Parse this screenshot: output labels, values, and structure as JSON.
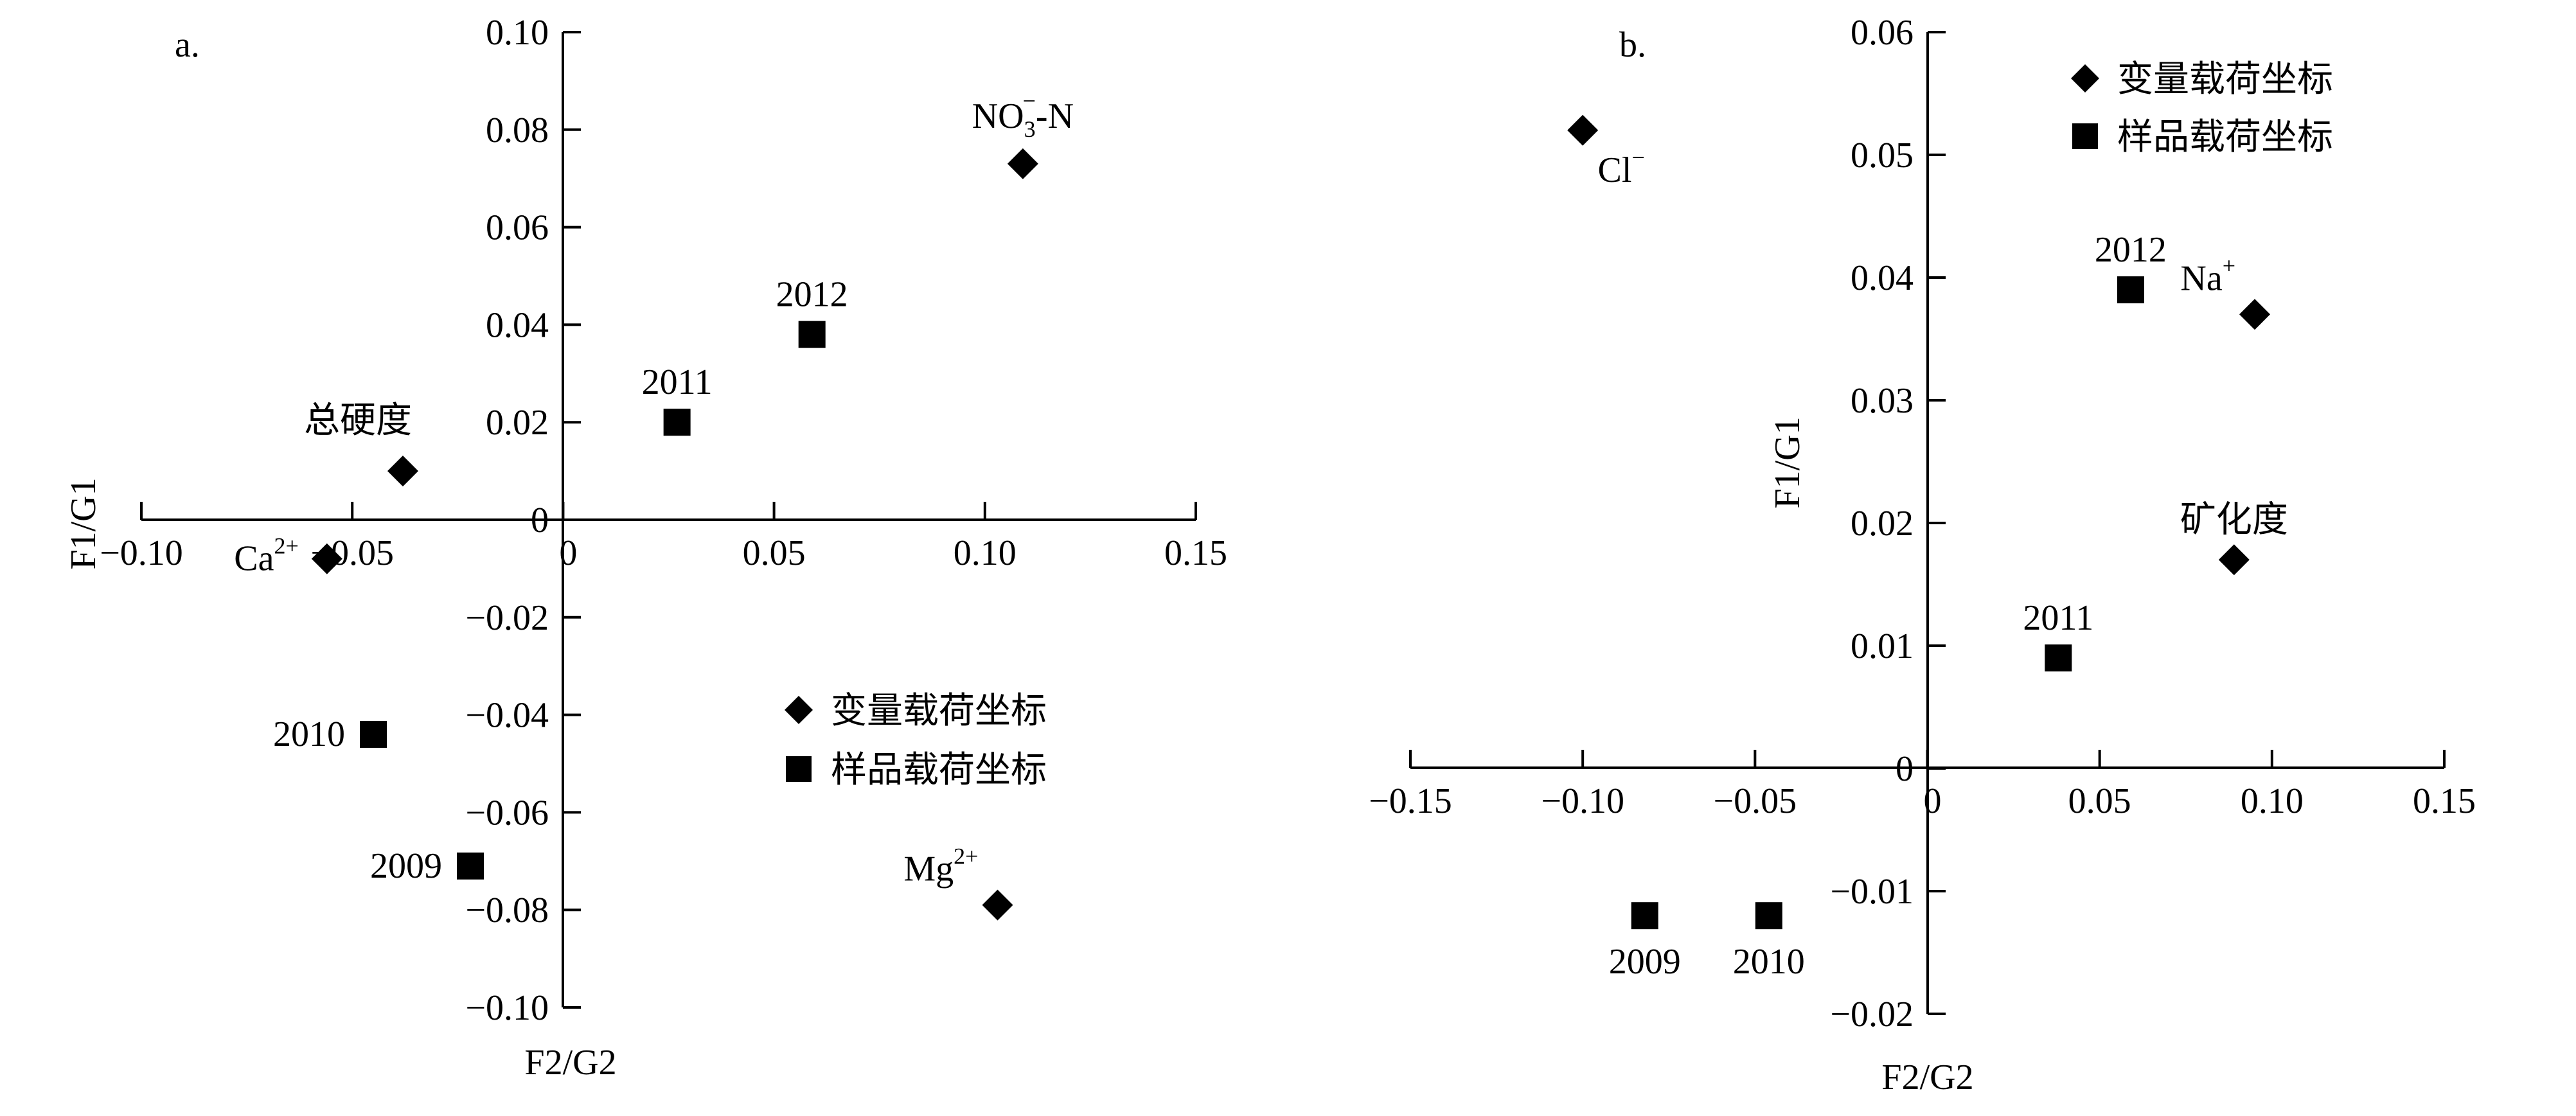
{
  "chart_data": [
    {
      "type": "scatter",
      "panel_label": "a.",
      "xlabel": "F2/G2",
      "ylabel": "F1/G1",
      "xlim": [
        -0.1,
        0.15
      ],
      "ylim": [
        -0.1,
        0.1
      ],
      "x_ticks": [
        {
          "value": -0.1,
          "label": "−0.10"
        },
        {
          "value": -0.05,
          "label": "−0.05"
        },
        {
          "value": 0,
          "label": "0"
        },
        {
          "value": 0.05,
          "label": "0.05"
        },
        {
          "value": 0.1,
          "label": "0.10"
        },
        {
          "value": 0.15,
          "label": "0.15"
        }
      ],
      "y_ticks": [
        {
          "value": 0.1,
          "label": "0.10"
        },
        {
          "value": 0.08,
          "label": "0.08"
        },
        {
          "value": 0.06,
          "label": "0.06"
        },
        {
          "value": 0.04,
          "label": "0.04"
        },
        {
          "value": 0.02,
          "label": "0.02"
        },
        {
          "value": 0,
          "label": "0"
        },
        {
          "value": -0.02,
          "label": "−0.02"
        },
        {
          "value": -0.04,
          "label": "−0.04"
        },
        {
          "value": -0.06,
          "label": "−0.06"
        },
        {
          "value": -0.08,
          "label": "−0.08"
        },
        {
          "value": -0.1,
          "label": "−0.10"
        }
      ],
      "legend": {
        "position": "lower-right",
        "items": [
          {
            "marker": "diamond",
            "label": "变量载荷坐标"
          },
          {
            "marker": "square",
            "label": "样品载荷坐标"
          }
        ]
      },
      "series": [
        {
          "name": "变量载荷坐标",
          "marker": "diamond",
          "points": [
            {
              "x": 0.109,
              "y": 0.073,
              "label": "NO3-N",
              "label_base": "NO",
              "label_sub": "3",
              "label_sup": "−",
              "label_tail": "-N",
              "label_pos": "above"
            },
            {
              "x": -0.038,
              "y": 0.01,
              "label": "总硬度",
              "label_pos": "upper-left"
            },
            {
              "x": -0.056,
              "y": -0.008,
              "label": "Ca2+",
              "label_base": "Ca",
              "label_sup": "2+",
              "label_pos": "left"
            },
            {
              "x": 0.103,
              "y": -0.079,
              "label": "Mg2+",
              "label_base": "Mg",
              "label_sup": "2+",
              "label_pos": "upper-left"
            }
          ]
        },
        {
          "name": "样品载荷坐标",
          "marker": "square",
          "points": [
            {
              "x": 0.059,
              "y": 0.038,
              "label": "2012",
              "label_pos": "above"
            },
            {
              "x": 0.027,
              "y": 0.02,
              "label": "2011",
              "label_pos": "above"
            },
            {
              "x": -0.045,
              "y": -0.044,
              "label": "2010",
              "label_pos": "left"
            },
            {
              "x": -0.022,
              "y": -0.071,
              "label": "2009",
              "label_pos": "left"
            }
          ]
        }
      ]
    },
    {
      "type": "scatter",
      "panel_label": "b.",
      "xlabel": "F2/G2",
      "ylabel": "F1/G1",
      "xlim": [
        -0.15,
        0.15
      ],
      "ylim": [
        -0.02,
        0.06
      ],
      "x_ticks": [
        {
          "value": -0.15,
          "label": "−0.15"
        },
        {
          "value": -0.1,
          "label": "−0.10"
        },
        {
          "value": -0.05,
          "label": "−0.05"
        },
        {
          "value": 0,
          "label": "0"
        },
        {
          "value": 0.05,
          "label": "0.05"
        },
        {
          "value": 0.1,
          "label": "0.10"
        },
        {
          "value": 0.15,
          "label": "0.15"
        }
      ],
      "y_ticks": [
        {
          "value": 0.06,
          "label": "0.06"
        },
        {
          "value": 0.05,
          "label": "0.05"
        },
        {
          "value": 0.04,
          "label": "0.04"
        },
        {
          "value": 0.03,
          "label": "0.03"
        },
        {
          "value": 0.02,
          "label": "0.02"
        },
        {
          "value": 0.01,
          "label": "0.01"
        },
        {
          "value": 0,
          "label": "0"
        },
        {
          "value": -0.01,
          "label": "−0.01"
        },
        {
          "value": -0.02,
          "label": "−0.02"
        }
      ],
      "legend": {
        "position": "top-right",
        "items": [
          {
            "marker": "diamond",
            "label": "变量载荷坐标"
          },
          {
            "marker": "square",
            "label": "样品载荷坐标"
          }
        ]
      },
      "series": [
        {
          "name": "变量载荷坐标",
          "marker": "diamond",
          "points": [
            {
              "x": -0.1,
              "y": 0.052,
              "label": "Cl−",
              "label_base": "Cl",
              "label_sup": "−",
              "label_pos": "below"
            },
            {
              "x": 0.095,
              "y": 0.037,
              "label": "Na+",
              "label_base": "Na",
              "label_sup": "+",
              "label_pos": "upper-left"
            },
            {
              "x": 0.089,
              "y": 0.017,
              "label": "矿化度",
              "label_pos": "above"
            }
          ]
        },
        {
          "name": "样品载荷坐标",
          "marker": "square",
          "points": [
            {
              "x": 0.059,
              "y": 0.039,
              "label": "2012",
              "label_pos": "above"
            },
            {
              "x": 0.038,
              "y": 0.009,
              "label": "2011",
              "label_pos": "above"
            },
            {
              "x": -0.082,
              "y": -0.012,
              "label": "2009",
              "label_pos": "below"
            },
            {
              "x": -0.046,
              "y": -0.012,
              "label": "2010",
              "label_pos": "below"
            }
          ]
        }
      ]
    }
  ]
}
